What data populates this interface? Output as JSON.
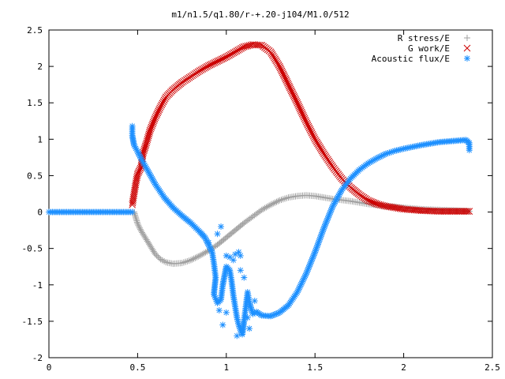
{
  "chart_data": {
    "type": "scatter",
    "title": "m1/n1.5/q1.80/r-+.20-j104/M1.0/512",
    "xlabel": "",
    "ylabel": "",
    "xlim": [
      0,
      2.5
    ],
    "ylim": [
      -2,
      2.5
    ],
    "x_ticks": [
      "0",
      "0.5",
      "1",
      "1.5",
      "2",
      "2.5"
    ],
    "y_ticks": [
      "2.5",
      "2",
      "1.5",
      "1",
      "0.5",
      "0",
      "-0.5",
      "-1",
      "-1.5",
      "-2"
    ],
    "grid": false,
    "legend_position": "top-right",
    "series": [
      {
        "name": "R stress/E",
        "marker": "plus",
        "color": "#a0a0a0",
        "points": [
          [
            0.48,
            0.0
          ],
          [
            0.49,
            -0.08
          ],
          [
            0.5,
            -0.16
          ],
          [
            0.52,
            -0.26
          ],
          [
            0.55,
            -0.38
          ],
          [
            0.58,
            -0.5
          ],
          [
            0.6,
            -0.58
          ],
          [
            0.63,
            -0.65
          ],
          [
            0.66,
            -0.69
          ],
          [
            0.7,
            -0.71
          ],
          [
            0.75,
            -0.7
          ],
          [
            0.8,
            -0.66
          ],
          [
            0.85,
            -0.6
          ],
          [
            0.9,
            -0.53
          ],
          [
            0.95,
            -0.45
          ],
          [
            1.0,
            -0.35
          ],
          [
            1.05,
            -0.25
          ],
          [
            1.1,
            -0.15
          ],
          [
            1.15,
            -0.06
          ],
          [
            1.2,
            0.03
          ],
          [
            1.25,
            0.1
          ],
          [
            1.3,
            0.16
          ],
          [
            1.35,
            0.2
          ],
          [
            1.4,
            0.22
          ],
          [
            1.45,
            0.23
          ],
          [
            1.5,
            0.22
          ],
          [
            1.55,
            0.2
          ],
          [
            1.6,
            0.18
          ],
          [
            1.7,
            0.15
          ],
          [
            1.8,
            0.11
          ],
          [
            1.9,
            0.08
          ],
          [
            2.0,
            0.06
          ],
          [
            2.1,
            0.04
          ],
          [
            2.2,
            0.03
          ],
          [
            2.3,
            0.02
          ],
          [
            2.37,
            0.01
          ]
        ]
      },
      {
        "name": "G work/E",
        "marker": "x",
        "color": "#cc0000",
        "points": [
          [
            0.47,
            0.1
          ],
          [
            0.48,
            0.25
          ],
          [
            0.49,
            0.4
          ],
          [
            0.5,
            0.52
          ],
          [
            0.52,
            0.62
          ],
          [
            0.53,
            0.8
          ],
          [
            0.55,
            0.95
          ],
          [
            0.57,
            1.12
          ],
          [
            0.6,
            1.3
          ],
          [
            0.63,
            1.45
          ],
          [
            0.66,
            1.58
          ],
          [
            0.7,
            1.68
          ],
          [
            0.75,
            1.78
          ],
          [
            0.8,
            1.86
          ],
          [
            0.85,
            1.94
          ],
          [
            0.9,
            2.01
          ],
          [
            0.95,
            2.07
          ],
          [
            1.0,
            2.13
          ],
          [
            1.05,
            2.2
          ],
          [
            1.1,
            2.27
          ],
          [
            1.15,
            2.3
          ],
          [
            1.2,
            2.29
          ],
          [
            1.25,
            2.2
          ],
          [
            1.3,
            2.0
          ],
          [
            1.35,
            1.75
          ],
          [
            1.4,
            1.5
          ],
          [
            1.45,
            1.24
          ],
          [
            1.5,
            1.0
          ],
          [
            1.55,
            0.8
          ],
          [
            1.6,
            0.62
          ],
          [
            1.65,
            0.46
          ],
          [
            1.7,
            0.34
          ],
          [
            1.75,
            0.24
          ],
          [
            1.8,
            0.16
          ],
          [
            1.85,
            0.11
          ],
          [
            1.9,
            0.08
          ],
          [
            2.0,
            0.04
          ],
          [
            2.1,
            0.02
          ],
          [
            2.2,
            0.01
          ],
          [
            2.3,
            0.01
          ],
          [
            2.37,
            0.01
          ]
        ]
      },
      {
        "name": "Acoustic flux/E",
        "marker": "star",
        "color": "#1e90ff",
        "points": [
          [
            0.0,
            0.0
          ],
          [
            0.05,
            0.0
          ],
          [
            0.1,
            0.0
          ],
          [
            0.15,
            0.0
          ],
          [
            0.2,
            0.0
          ],
          [
            0.25,
            0.0
          ],
          [
            0.3,
            0.0
          ],
          [
            0.35,
            0.0
          ],
          [
            0.4,
            0.0
          ],
          [
            0.45,
            0.0
          ],
          [
            0.47,
            0.0
          ],
          [
            0.47,
            1.18
          ],
          [
            0.47,
            1.05
          ],
          [
            0.48,
            0.92
          ],
          [
            0.5,
            0.83
          ],
          [
            0.52,
            0.73
          ],
          [
            0.55,
            0.6
          ],
          [
            0.6,
            0.38
          ],
          [
            0.65,
            0.2
          ],
          [
            0.7,
            0.06
          ],
          [
            0.75,
            -0.05
          ],
          [
            0.8,
            -0.15
          ],
          [
            0.85,
            -0.27
          ],
          [
            0.88,
            -0.35
          ],
          [
            0.9,
            -0.45
          ],
          [
            0.92,
            -0.55
          ],
          [
            0.93,
            -0.7
          ],
          [
            0.94,
            -0.9
          ],
          [
            0.93,
            -1.13
          ],
          [
            0.95,
            -1.25
          ],
          [
            0.97,
            -1.2
          ],
          [
            0.98,
            -1.0
          ],
          [
            1.0,
            -0.75
          ],
          [
            1.02,
            -0.8
          ],
          [
            1.03,
            -0.95
          ],
          [
            1.04,
            -1.15
          ],
          [
            1.05,
            -1.3
          ],
          [
            1.06,
            -1.45
          ],
          [
            1.07,
            -1.55
          ],
          [
            1.08,
            -1.62
          ],
          [
            1.09,
            -1.68
          ],
          [
            1.1,
            -1.5
          ],
          [
            1.11,
            -1.3
          ],
          [
            1.12,
            -1.1
          ],
          [
            1.13,
            -1.25
          ],
          [
            1.15,
            -1.4
          ],
          [
            1.17,
            -1.37
          ],
          [
            1.2,
            -1.42
          ],
          [
            1.25,
            -1.43
          ],
          [
            1.3,
            -1.38
          ],
          [
            1.35,
            -1.28
          ],
          [
            1.4,
            -1.1
          ],
          [
            1.45,
            -0.85
          ],
          [
            1.5,
            -0.55
          ],
          [
            1.55,
            -0.22
          ],
          [
            1.6,
            0.08
          ],
          [
            1.65,
            0.3
          ],
          [
            1.7,
            0.46
          ],
          [
            1.75,
            0.58
          ],
          [
            1.8,
            0.67
          ],
          [
            1.85,
            0.74
          ],
          [
            1.9,
            0.8
          ],
          [
            1.95,
            0.84
          ],
          [
            2.0,
            0.87
          ],
          [
            2.1,
            0.92
          ],
          [
            2.2,
            0.96
          ],
          [
            2.3,
            0.98
          ],
          [
            2.35,
            0.99
          ],
          [
            2.37,
            0.95
          ],
          [
            2.37,
            0.85
          ],
          [
            0.9,
            -0.42
          ],
          [
            0.95,
            -0.3
          ],
          [
            0.97,
            -0.2
          ],
          [
            1.0,
            -0.6
          ],
          [
            1.02,
            -0.62
          ],
          [
            1.04,
            -0.66
          ],
          [
            1.05,
            -0.58
          ],
          [
            1.07,
            -0.55
          ],
          [
            1.08,
            -0.6
          ],
          [
            1.08,
            -0.8
          ],
          [
            1.1,
            -0.9
          ],
          [
            0.96,
            -1.35
          ],
          [
            1.0,
            -1.38
          ],
          [
            1.06,
            -1.7
          ],
          [
            1.12,
            -1.45
          ],
          [
            1.13,
            -1.6
          ],
          [
            1.16,
            -1.22
          ],
          [
            0.98,
            -1.55
          ]
        ]
      }
    ]
  }
}
